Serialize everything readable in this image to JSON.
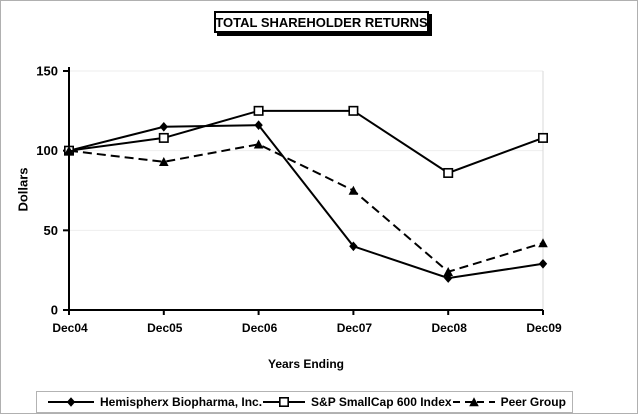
{
  "figure_title": "TOTAL SHAREHOLDER RETURNS",
  "chart_data": {
    "type": "line",
    "title": "TOTAL SHAREHOLDER RETURNS",
    "xlabel": "Years Ending",
    "ylabel": "Dollars",
    "categories": [
      "Dec04",
      "Dec05",
      "Dec06",
      "Dec07",
      "Dec08",
      "Dec09"
    ],
    "yticks": [
      0,
      50,
      100,
      150
    ],
    "ylim": [
      0,
      150
    ],
    "grid": "horizontal-light",
    "legend_position": "bottom",
    "series": [
      {
        "name": "Hemispherx Biopharma, Inc.",
        "values": [
          100,
          115,
          116,
          40,
          20,
          29
        ],
        "marker": "diamond",
        "line": "solid"
      },
      {
        "name": "S&P SmallCap 600 Index",
        "values": [
          100,
          108,
          125,
          125,
          86,
          108
        ],
        "marker": "square-open",
        "line": "solid"
      },
      {
        "name": "Peer Group",
        "values": [
          100,
          93,
          104,
          75,
          24,
          42
        ],
        "marker": "triangle",
        "line": "dashed"
      }
    ],
    "colors": {
      "line": "#000000",
      "grid": "#eeeeee",
      "plot_border": "#d9d9d9",
      "legend_border": "#b3b3b3",
      "figure_border": "#b0b0b0"
    }
  }
}
